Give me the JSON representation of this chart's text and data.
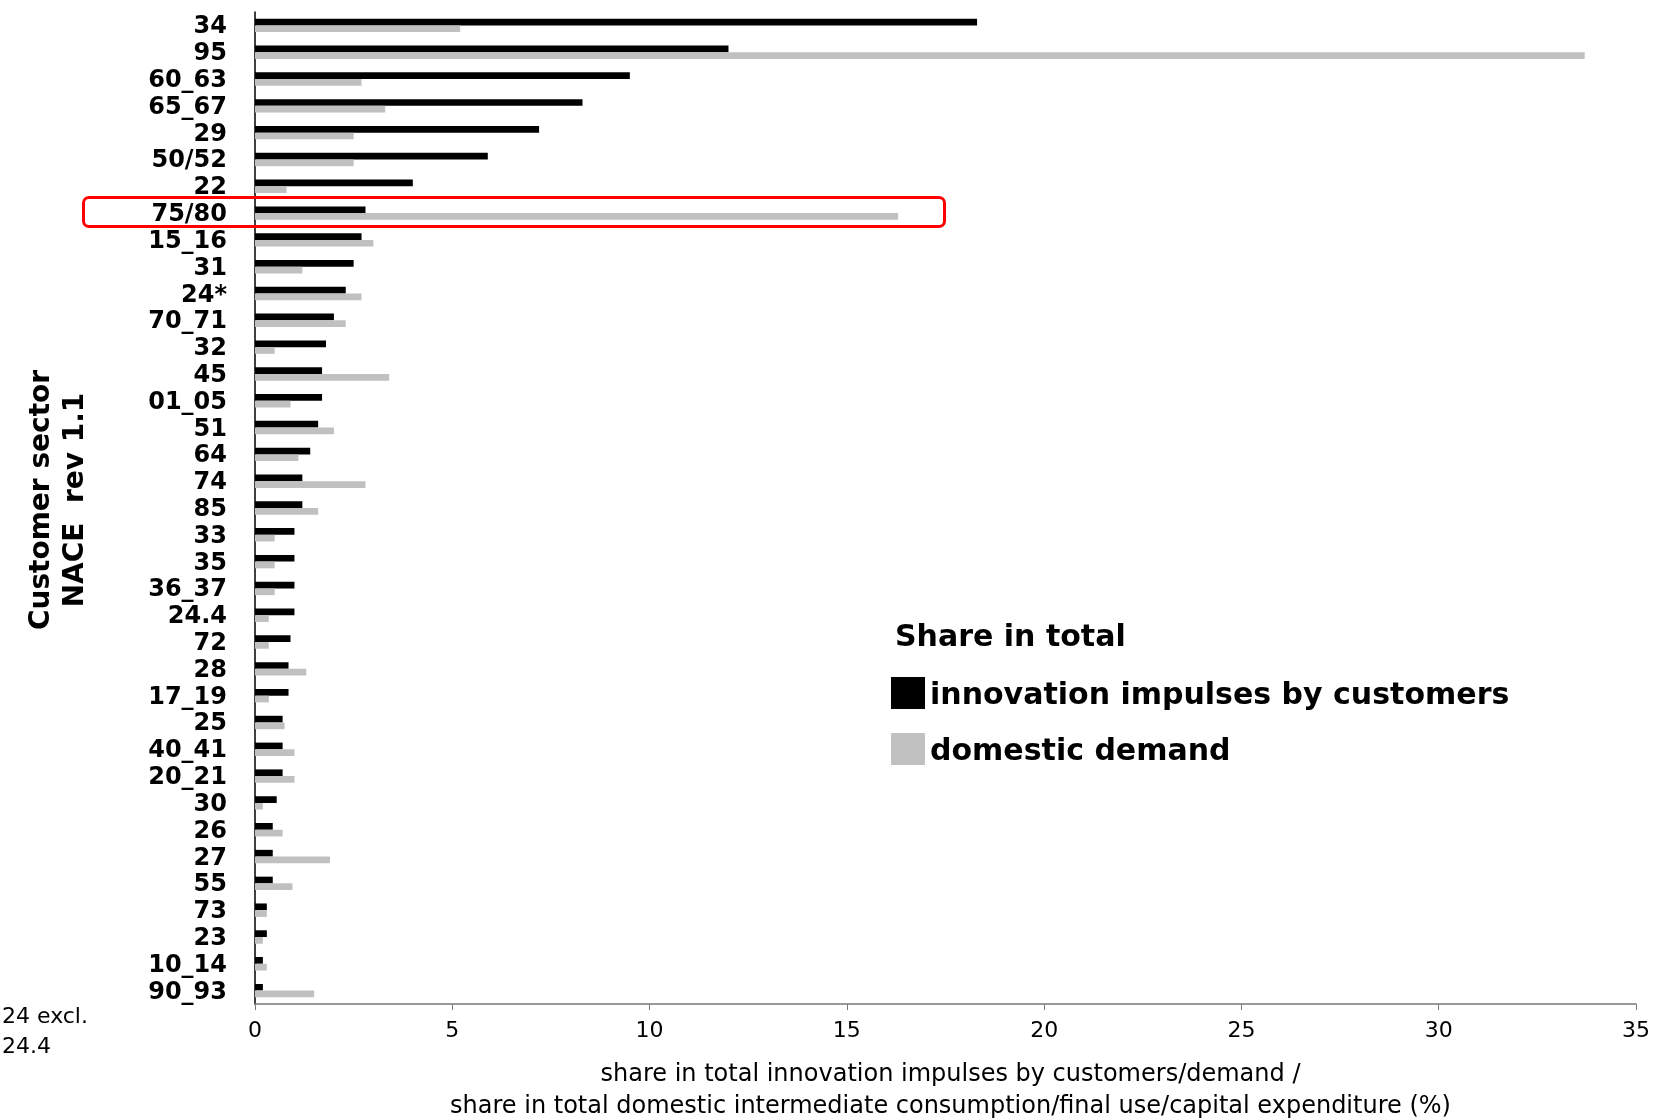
{
  "chart_data": {
    "type": "bar",
    "orientation": "horizontal",
    "categories": [
      "34",
      "95",
      "60_63",
      "65_67",
      "29",
      "50/52",
      "22",
      "75/80",
      "15_16",
      "31",
      "24*",
      "70_71",
      "32",
      "45",
      "01_05",
      "51",
      "64",
      "74",
      "85",
      "33",
      "35",
      "36_37",
      "24.4",
      "72",
      "28",
      "17_19",
      "25",
      "40_41",
      "20_21",
      "30",
      "26",
      "27",
      "55",
      "73",
      "23",
      "10_14",
      "90_93"
    ],
    "series": [
      {
        "name": "innovation impulses by customers",
        "color": "#000000",
        "values": [
          18.3,
          12.0,
          9.5,
          8.3,
          7.2,
          5.9,
          4.0,
          2.8,
          2.7,
          2.5,
          2.3,
          2.0,
          1.8,
          1.7,
          1.7,
          1.6,
          1.4,
          1.2,
          1.2,
          1.0,
          1.0,
          1.0,
          1.0,
          0.9,
          0.85,
          0.85,
          0.7,
          0.7,
          0.7,
          0.55,
          0.45,
          0.45,
          0.45,
          0.3,
          0.3,
          0.2,
          0.2
        ]
      },
      {
        "name": "domestic demand",
        "color": "#c0c0c0",
        "values": [
          5.2,
          33.7,
          2.7,
          3.3,
          2.5,
          2.5,
          0.8,
          16.3,
          3.0,
          1.2,
          2.7,
          2.3,
          0.5,
          3.4,
          0.9,
          2.0,
          1.1,
          2.8,
          1.6,
          0.5,
          0.5,
          0.5,
          0.35,
          0.35,
          1.3,
          0.35,
          0.75,
          1.0,
          1.0,
          0.2,
          0.7,
          1.9,
          0.95,
          0.3,
          0.2,
          0.3,
          1.5
        ]
      }
    ],
    "xlim": [
      0,
      35
    ],
    "xticks": [
      0,
      5,
      10,
      15,
      20,
      25,
      30,
      35
    ],
    "xlabel": "share in total innovation impulses by customers/demand /\nshare in total domestic intermediate consumption/final use/capital expenditure (%)",
    "ylabel": "Customer sector\nNACE  rev 1.1",
    "legend_title": "Share in total",
    "legend": "right",
    "grid": false,
    "annotations": [
      "24 excl.\n24.4"
    ]
  }
}
